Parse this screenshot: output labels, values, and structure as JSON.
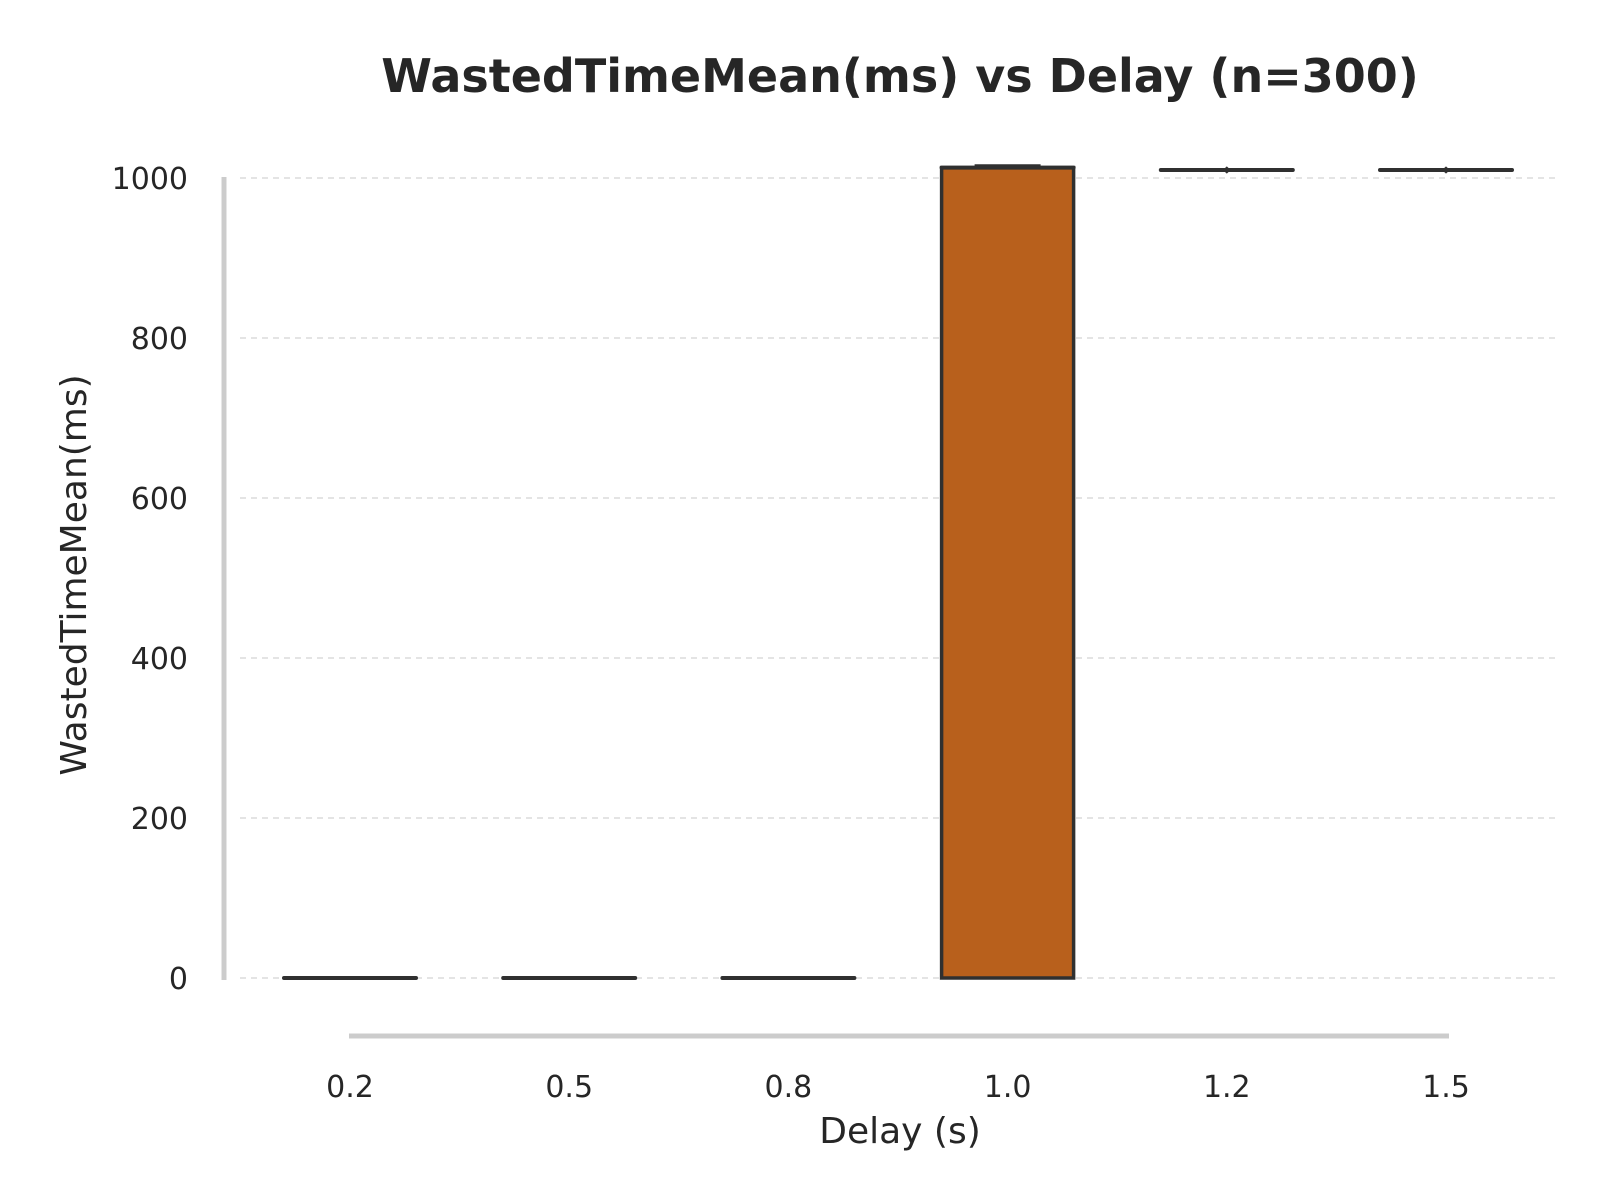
{
  "chart_data": {
    "type": "box",
    "title": "WastedTimeMean(ms) vs Delay (n=300)",
    "xlabel": "Delay (s)",
    "ylabel": "WastedTimeMean(ms)",
    "categories": [
      "0.2",
      "0.5",
      "0.8",
      "1.0",
      "1.2",
      "1.5"
    ],
    "yticks": [
      0,
      200,
      400,
      600,
      800,
      1000
    ],
    "ylim": [
      -30,
      1015
    ],
    "grid": true,
    "box_color": "#b8601c",
    "line_color": "#303030",
    "boxes": [
      {
        "category": "0.2",
        "whislo": 0,
        "q1": 0,
        "med": 0,
        "q3": 0,
        "whishi": 0,
        "fliers": []
      },
      {
        "category": "0.5",
        "whislo": 0,
        "q1": 0,
        "med": 0,
        "q3": 0,
        "whishi": 0,
        "fliers": []
      },
      {
        "category": "0.8",
        "whislo": 0,
        "q1": 0,
        "med": 0,
        "q3": 0,
        "whishi": 0,
        "fliers": []
      },
      {
        "category": "1.0",
        "whislo": 0,
        "q1": 0,
        "med": 1013,
        "q3": 1013,
        "whishi": 1015,
        "fliers": []
      },
      {
        "category": "1.2",
        "whislo": 1010,
        "q1": 1010,
        "med": 1010,
        "q3": 1010,
        "whishi": 1010,
        "fliers": [
          1008,
          1012
        ]
      },
      {
        "category": "1.5",
        "whislo": 1010,
        "q1": 1010,
        "med": 1010,
        "q3": 1010,
        "whishi": 1010,
        "fliers": [
          1008,
          1012
        ]
      }
    ]
  }
}
